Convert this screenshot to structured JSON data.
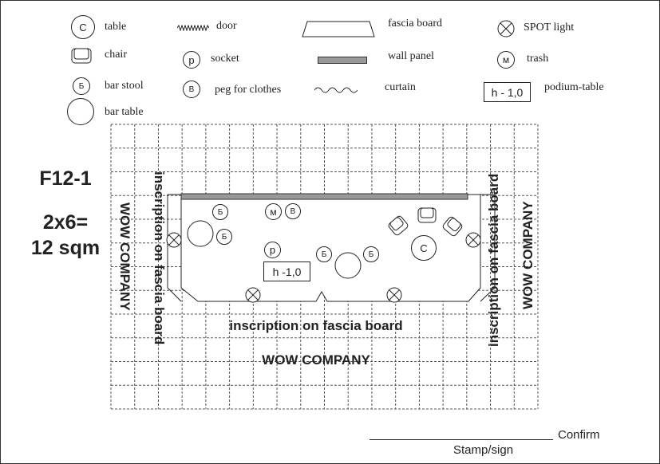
{
  "legend": {
    "table": {
      "symbol": "C",
      "label": "table"
    },
    "chair": {
      "label": "chair"
    },
    "bar_stool": {
      "symbol": "Б",
      "label": "bar stool"
    },
    "bar_table": {
      "label": "bar table"
    },
    "door": {
      "label": "door"
    },
    "socket": {
      "symbol": "p",
      "label": "socket"
    },
    "peg": {
      "symbol": "B",
      "label": "peg for clothes"
    },
    "fascia": {
      "label": "fascia board"
    },
    "wall_panel": {
      "label": "wall panel"
    },
    "curtain": {
      "label": "curtain"
    },
    "spot": {
      "label": "SPOT light"
    },
    "trash": {
      "symbol": "м",
      "label": "trash"
    },
    "podium": {
      "symbol": "h - 1,0",
      "label": "podium-table"
    }
  },
  "stand": {
    "code": "F12-1",
    "size_line1": "2x6=",
    "size_line2": "12 sqm"
  },
  "plan": {
    "podium_label": "h -1,0",
    "socket_symbol": "p",
    "stool_symbol": "Б",
    "trash_symbol": "м",
    "peg_symbol": "B",
    "table_symbol": "C",
    "fascia_inscription_bottom": "inscription on fascia board",
    "company_bottom": "WOW COMPANY",
    "fascia_inscription_left": "inscription on fascia board",
    "company_left": "WOW COMPANY",
    "fascia_inscription_right": "inscription on fascia board",
    "company_right": "WOW COMPANY"
  },
  "footer": {
    "confirm": "Confirm",
    "stamp_sign": "Stamp/sign"
  },
  "colors": {
    "line": "#222222",
    "grid": "#555555",
    "wall_panel": "#999999"
  }
}
